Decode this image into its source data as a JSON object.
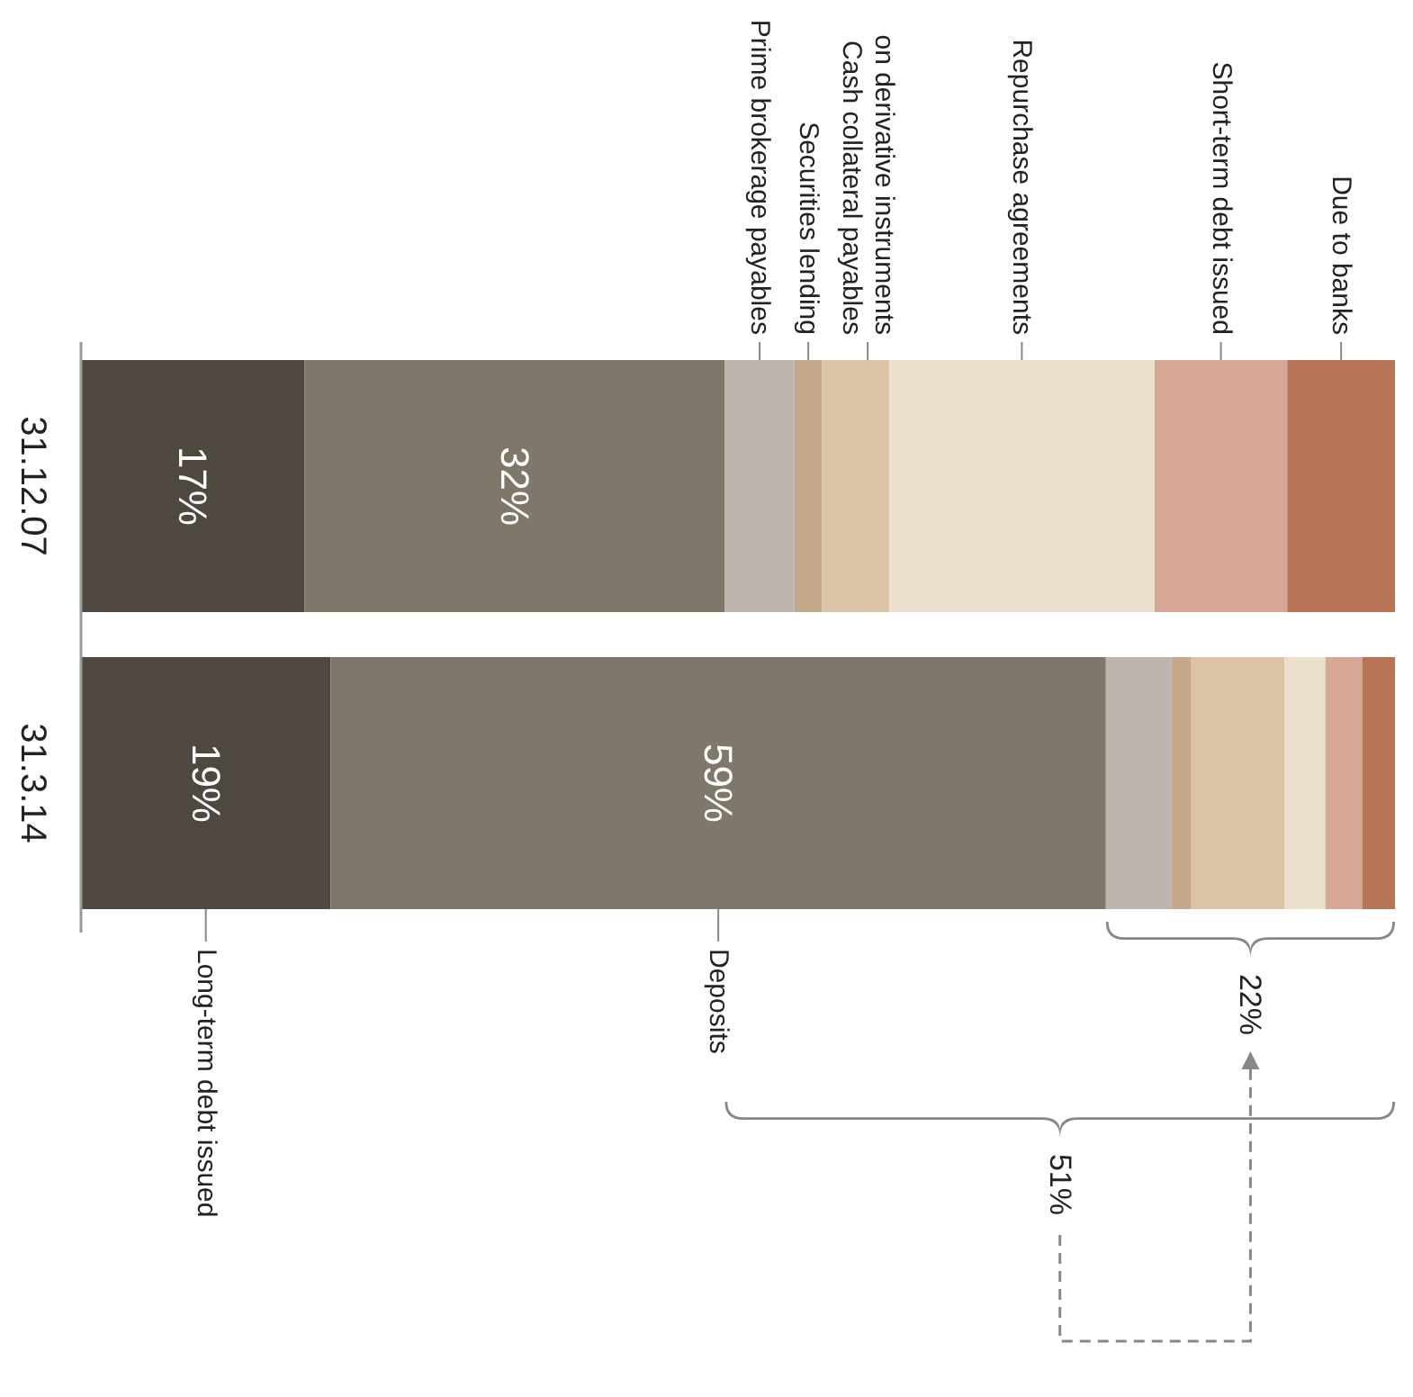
{
  "chart_data": {
    "type": "bar",
    "orientation": "horizontal",
    "stacked": true,
    "categories": [
      "31.12.07",
      "31.3.14"
    ],
    "series": [
      {
        "name": "Long-term debt issued",
        "color": "#4f4840",
        "values": [
          17,
          19
        ],
        "value_labels": [
          "17%",
          "19%"
        ]
      },
      {
        "name": "Deposits",
        "color": "#80776b",
        "values": [
          32,
          59
        ],
        "value_labels": [
          "32%",
          "59%"
        ]
      },
      {
        "name": "Prime brokerage payables",
        "color": "#bdb5ad",
        "values": [
          5.3,
          5
        ]
      },
      {
        "name": "Securities lending",
        "color": "#c4a88a",
        "values": [
          2.1,
          1.5
        ]
      },
      {
        "name": "Cash collateral payables on derivative instruments",
        "color": "#dcc3a6",
        "values": [
          5.1,
          7.1
        ]
      },
      {
        "name": "Repurchase agreements",
        "color": "#ecdfcd",
        "values": [
          20.2,
          3.1
        ]
      },
      {
        "name": "Short-term debt issued",
        "color": "#d6a794",
        "values": [
          10.1,
          2.8
        ]
      },
      {
        "name": "Due to banks",
        "color": "#b87457",
        "values": [
          8.2,
          2.5
        ]
      }
    ],
    "annotations": [
      "22%",
      "51%"
    ]
  }
}
